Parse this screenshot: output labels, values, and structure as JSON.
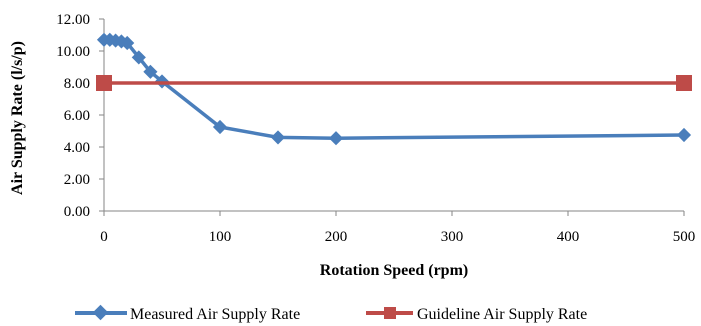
{
  "chart_data": {
    "type": "line",
    "title": "",
    "xlabel": "Rotation Speed (rpm)",
    "ylabel": "Air Supply Rate (l/s/p)",
    "xlim": [
      0,
      500
    ],
    "ylim": [
      0,
      12
    ],
    "x_ticks": [
      "0",
      "100",
      "200",
      "300",
      "400",
      "500"
    ],
    "y_ticks": [
      "0.00",
      "2.00",
      "4.00",
      "6.00",
      "8.00",
      "10.00",
      "12.00"
    ],
    "x_tick_values": [
      0,
      100,
      200,
      300,
      400,
      500
    ],
    "y_tick_values": [
      0,
      2,
      4,
      6,
      8,
      10,
      12
    ],
    "grid": false,
    "legend_position": "bottom",
    "series": [
      {
        "name": "Measured Air Supply Rate",
        "color": "#4A7EBB",
        "marker": "diamond",
        "x": [
          0,
          5,
          10,
          15,
          20,
          30,
          40,
          50,
          100,
          150,
          200,
          500
        ],
        "values": [
          10.7,
          10.7,
          10.65,
          10.6,
          10.5,
          9.6,
          8.7,
          8.1,
          5.25,
          4.6,
          4.55,
          4.75
        ]
      },
      {
        "name": "Guideline Air Supply Rate",
        "color": "#BE4B48",
        "marker": "square",
        "x": [
          0,
          500
        ],
        "values": [
          8.0,
          8.0
        ]
      }
    ]
  }
}
